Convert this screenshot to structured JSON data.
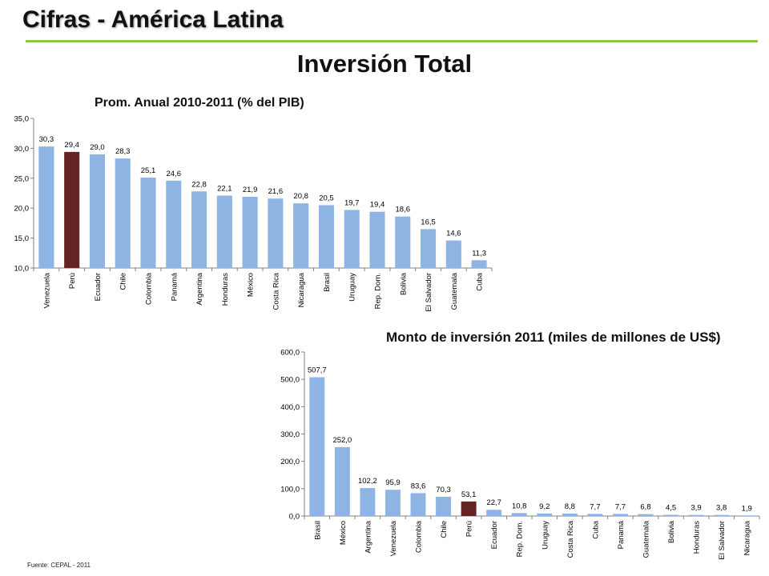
{
  "header": {
    "title": "Cifras - América Latina"
  },
  "main_title": "Inversión Total",
  "source": "Fuente: CEPAL - 2011",
  "colors": {
    "bar": "#8eb4e3",
    "highlight": "#632523",
    "rule": "#8dc63f"
  },
  "chart_data": [
    {
      "type": "bar",
      "title": "Prom. Anual 2010-2011  (% del PIB)",
      "xlabel": "",
      "ylabel": "",
      "categories": [
        "Venezuela",
        "Perú",
        "Ecuador",
        "Chile",
        "Colombia",
        "Panamá",
        "Argentina",
        "Honduras",
        "México",
        "Costa Rica",
        "Nicaragua",
        "Brasil",
        "Uruguay",
        "Rep. Dom.",
        "Bolivia",
        "El Salvador",
        "Guatemala",
        "Cuba"
      ],
      "values": [
        30.3,
        29.4,
        29.0,
        28.3,
        25.1,
        24.6,
        22.8,
        22.1,
        21.9,
        21.6,
        20.8,
        20.5,
        19.7,
        19.4,
        18.6,
        16.5,
        14.6,
        11.3
      ],
      "value_labels": [
        "30,3",
        "29,4",
        "29,0",
        "28,3",
        "25,1",
        "24,6",
        "22,8",
        "22,1",
        "21,9",
        "21,6",
        "20,8",
        "20,5",
        "19,7",
        "19,4",
        "18,6",
        "16,5",
        "14,6",
        "11,3"
      ],
      "ylim": [
        10,
        35
      ],
      "yticks": [
        "10,0",
        "15,0",
        "20,0",
        "25,0",
        "30,0",
        "35,0"
      ],
      "highlight": "Perú",
      "grid": false,
      "legend": "none"
    },
    {
      "type": "bar",
      "title": "Monto de inversión  2011 (miles de millones de US$)",
      "xlabel": "",
      "ylabel": "",
      "categories": [
        "Brasil",
        "México",
        "Argentina",
        "Venezuela",
        "Colombia",
        "Chile",
        "Perú",
        "Ecuador",
        "Rep. Dom.",
        "Uruguay",
        "Costa Rica",
        "Cuba",
        "Panamá",
        "Guatemala",
        "Bolivia",
        "Honduras",
        "El Salvador",
        "Nicaragua"
      ],
      "values": [
        507.7,
        252.0,
        102.2,
        95.9,
        83.6,
        70.3,
        53.1,
        22.7,
        10.8,
        9.2,
        8.8,
        7.7,
        7.7,
        6.8,
        4.5,
        3.9,
        3.8,
        1.9
      ],
      "value_labels": [
        "507,7",
        "252,0",
        "102,2",
        "95,9",
        "83,6",
        "70,3",
        "53,1",
        "22,7",
        "10,8",
        "9,2",
        "8,8",
        "7,7",
        "7,7",
        "6,8",
        "4,5",
        "3,9",
        "3,8",
        "1,9"
      ],
      "ylim": [
        0,
        600
      ],
      "yticks": [
        "0,0",
        "100,0",
        "200,0",
        "300,0",
        "400,0",
        "500,0",
        "600,0"
      ],
      "highlight": "Perú",
      "grid": false,
      "legend": "none"
    }
  ]
}
